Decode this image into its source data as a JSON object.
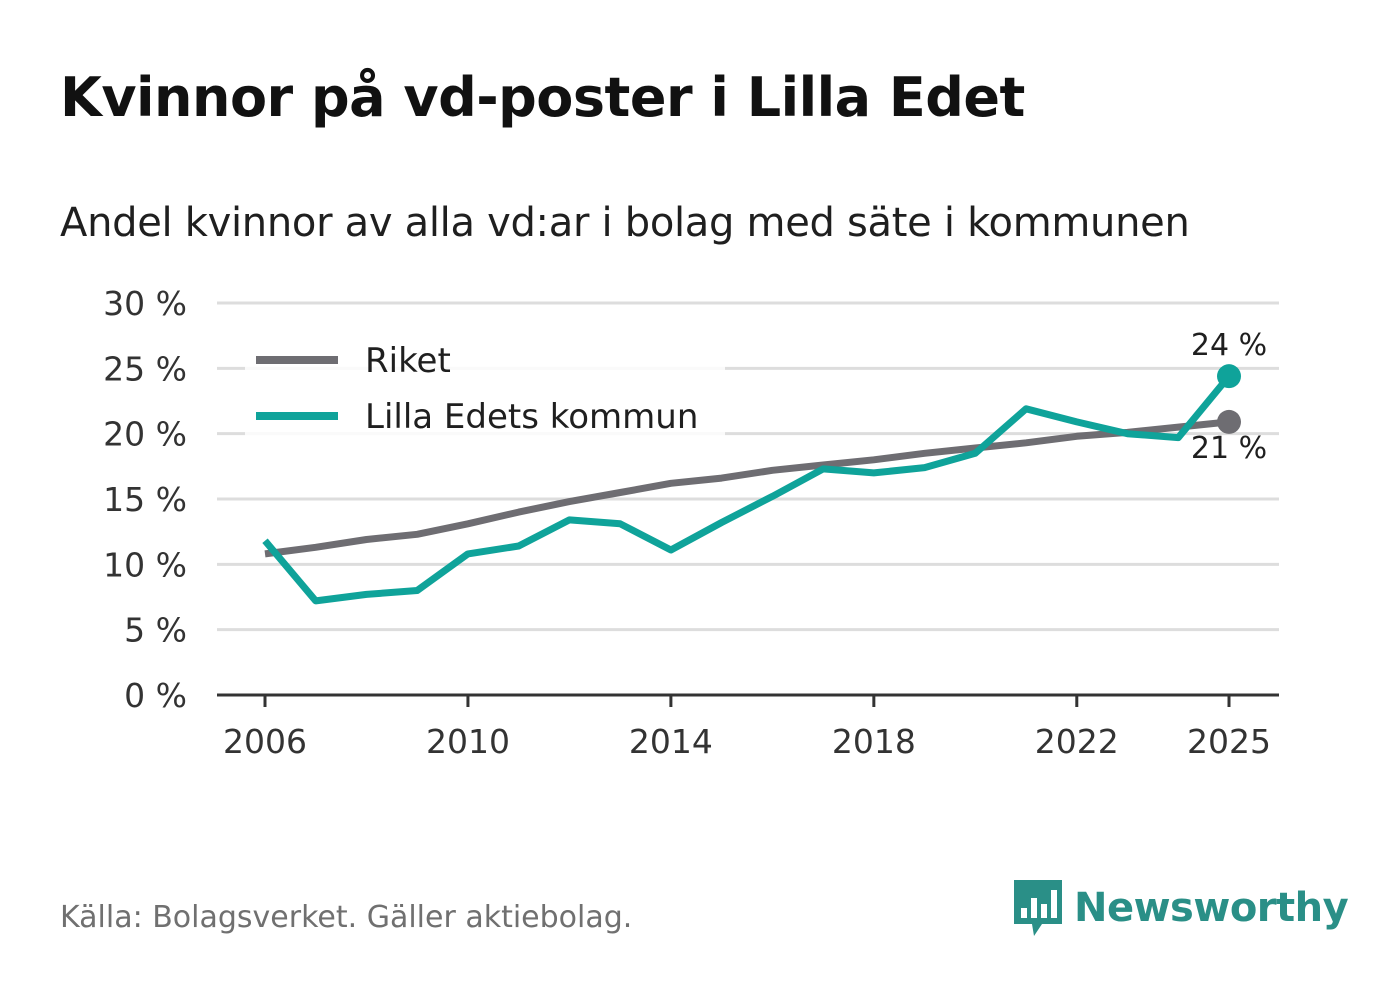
{
  "header": {
    "title": "Kvinnor på vd-poster i Lilla Edet",
    "subtitle": "Andel kvinnor av alla vd:ar i bolag med säte i kommunen"
  },
  "footer": {
    "source": "Källa: Bolagsverket. Gäller aktiebolag.",
    "brand": "Newsworthy",
    "brand_icon": "bar-chart-speech-bubble-icon"
  },
  "colors": {
    "riket": "#6e6d72",
    "kommun": "#0fa39a",
    "grid": "#dddddd",
    "axis": "#333333",
    "brand": "#2a8f87"
  },
  "chart_data": {
    "type": "line",
    "x": [
      2006,
      2007,
      2008,
      2009,
      2010,
      2011,
      2012,
      2013,
      2014,
      2015,
      2016,
      2017,
      2018,
      2019,
      2020,
      2021,
      2022,
      2023,
      2024,
      2025
    ],
    "series": [
      {
        "name": "Riket",
        "values": [
          10.8,
          11.3,
          11.9,
          12.3,
          13.1,
          14.0,
          14.8,
          15.5,
          16.2,
          16.6,
          17.2,
          17.6,
          18.0,
          18.5,
          18.9,
          19.3,
          19.8,
          20.1,
          20.5,
          20.9
        ],
        "end_label": "21 %"
      },
      {
        "name": "Lilla Edets kommun",
        "values": [
          11.8,
          7.2,
          7.7,
          8.0,
          10.8,
          11.4,
          13.4,
          13.1,
          11.1,
          13.2,
          15.2,
          17.3,
          17.0,
          17.4,
          18.5,
          21.9,
          20.9,
          20.0,
          19.7,
          24.4
        ],
        "end_label": "24 %"
      }
    ],
    "title": "Kvinnor på vd-poster i Lilla Edet",
    "xlabel": "",
    "ylabel": "",
    "ylim": [
      0,
      30
    ],
    "yticks": [
      0,
      5,
      10,
      15,
      20,
      25,
      30
    ],
    "ytick_labels": [
      "0 %",
      "5 %",
      "10 %",
      "15 %",
      "20 %",
      "25 %",
      "30 %"
    ],
    "xticks": [
      2006,
      2010,
      2014,
      2018,
      2022,
      2025
    ],
    "xtick_labels": [
      "2006",
      "2010",
      "2014",
      "2018",
      "2022",
      "2025"
    ],
    "grid": true,
    "legend": "top-left"
  }
}
